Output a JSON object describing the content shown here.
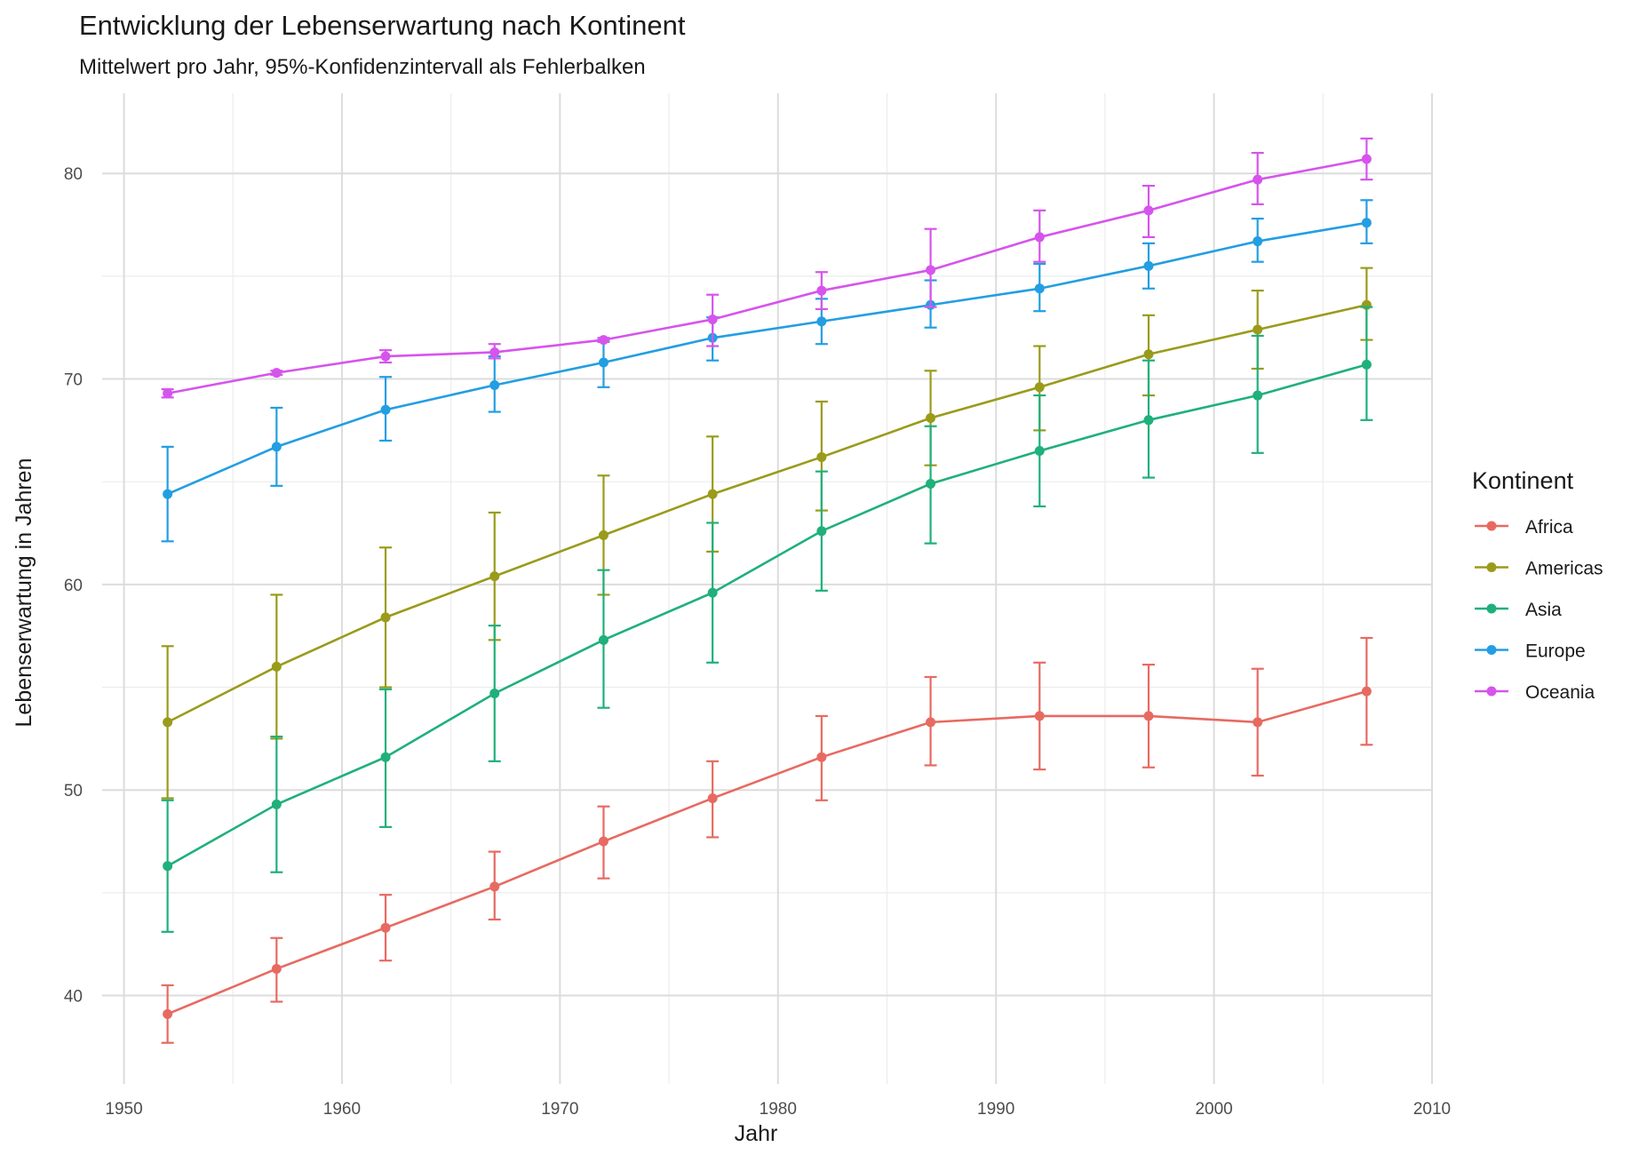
{
  "chart_data": {
    "type": "line",
    "title": "Entwicklung der Lebenserwartung nach Kontinent",
    "subtitle": "Mittelwert pro Jahr, 95%-Konfidenzintervall als Fehlerbalken",
    "xlabel": "Jahr",
    "ylabel": "Lebenserwartung in Jahren",
    "xlim": [
      1949,
      2010
    ],
    "ylim": [
      35.7,
      83.9
    ],
    "x_ticks": [
      1950,
      1960,
      1970,
      1980,
      1990,
      2000,
      2010
    ],
    "y_ticks": [
      40,
      50,
      60,
      70,
      80
    ],
    "grid": true,
    "legend": {
      "title": "Kontinent",
      "placement": "right"
    },
    "x": [
      1952,
      1957,
      1962,
      1967,
      1972,
      1977,
      1982,
      1987,
      1992,
      1997,
      2002,
      2007
    ],
    "series": [
      {
        "name": "Africa",
        "color": "#E76A61",
        "values": [
          39.1,
          41.3,
          43.3,
          45.3,
          47.5,
          49.6,
          51.6,
          53.3,
          53.6,
          53.6,
          53.3,
          54.8
        ],
        "lower": [
          37.7,
          39.7,
          41.7,
          43.7,
          45.7,
          47.7,
          49.5,
          51.2,
          51.0,
          51.1,
          50.7,
          52.2
        ],
        "upper": [
          40.5,
          42.8,
          44.9,
          47.0,
          49.2,
          51.4,
          53.6,
          55.5,
          56.2,
          56.1,
          55.9,
          57.4
        ]
      },
      {
        "name": "Americas",
        "color": "#9A9B1B",
        "values": [
          53.3,
          56.0,
          58.4,
          60.4,
          62.4,
          64.4,
          66.2,
          68.1,
          69.6,
          71.2,
          72.4,
          73.6
        ],
        "lower": [
          49.6,
          52.5,
          55.0,
          57.3,
          59.5,
          61.6,
          63.6,
          65.8,
          67.5,
          69.2,
          70.5,
          71.9
        ],
        "upper": [
          57.0,
          59.5,
          61.8,
          63.5,
          65.3,
          67.2,
          68.9,
          70.4,
          71.6,
          73.1,
          74.3,
          75.4
        ]
      },
      {
        "name": "Asia",
        "color": "#1FB07B",
        "values": [
          46.3,
          49.3,
          51.6,
          54.7,
          57.3,
          59.6,
          62.6,
          64.9,
          66.5,
          68.0,
          69.2,
          70.7
        ],
        "lower": [
          43.1,
          46.0,
          48.2,
          51.4,
          54.0,
          56.2,
          59.7,
          62.0,
          63.8,
          65.2,
          66.4,
          68.0
        ],
        "upper": [
          49.5,
          52.6,
          54.9,
          58.0,
          60.7,
          63.0,
          65.5,
          67.7,
          69.2,
          70.9,
          72.1,
          73.5
        ]
      },
      {
        "name": "Europe",
        "color": "#239EE2",
        "values": [
          64.4,
          66.7,
          68.5,
          69.7,
          70.8,
          72.0,
          72.8,
          73.6,
          74.4,
          75.5,
          76.7,
          77.6
        ],
        "lower": [
          62.1,
          64.8,
          67.0,
          68.4,
          69.6,
          70.9,
          71.7,
          72.5,
          73.3,
          74.4,
          75.7,
          76.6
        ],
        "upper": [
          66.7,
          68.6,
          70.1,
          71.1,
          71.9,
          73.0,
          73.9,
          74.8,
          75.6,
          76.6,
          77.8,
          78.7
        ]
      },
      {
        "name": "Oceania",
        "color": "#D654EC",
        "values": [
          69.3,
          70.3,
          71.1,
          71.3,
          71.9,
          72.9,
          74.3,
          75.3,
          76.9,
          78.2,
          79.7,
          80.7
        ],
        "lower": [
          69.1,
          70.2,
          70.8,
          71.0,
          71.8,
          71.6,
          73.4,
          73.5,
          75.7,
          76.9,
          78.5,
          79.7
        ],
        "upper": [
          69.5,
          70.4,
          71.4,
          71.7,
          72.0,
          74.1,
          75.2,
          77.3,
          78.2,
          79.4,
          81.0,
          81.7
        ]
      }
    ]
  }
}
